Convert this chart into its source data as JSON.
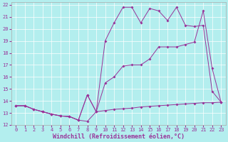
{
  "xlabel": "Windchill (Refroidissement éolien,°C)",
  "xlim": [
    -0.5,
    23.5
  ],
  "ylim": [
    12,
    22.2
  ],
  "xticks": [
    0,
    1,
    2,
    3,
    4,
    5,
    6,
    7,
    8,
    9,
    10,
    11,
    12,
    13,
    14,
    15,
    16,
    17,
    18,
    19,
    20,
    21,
    22,
    23
  ],
  "yticks": [
    12,
    13,
    14,
    15,
    16,
    17,
    18,
    19,
    20,
    21,
    22
  ],
  "bg_color": "#b3eeee",
  "line_color": "#993399",
  "line1_x": [
    0,
    1,
    2,
    3,
    4,
    5,
    6,
    7,
    8,
    9,
    10,
    11,
    12,
    13,
    14,
    15,
    16,
    17,
    18,
    19,
    20,
    21,
    22,
    23
  ],
  "line1_y": [
    13.6,
    13.6,
    13.3,
    13.1,
    12.9,
    12.75,
    12.7,
    12.4,
    12.3,
    13.1,
    13.2,
    13.3,
    13.35,
    13.4,
    13.5,
    13.55,
    13.6,
    13.65,
    13.7,
    13.75,
    13.8,
    13.85,
    13.85,
    13.9
  ],
  "line2_x": [
    0,
    1,
    2,
    3,
    4,
    5,
    6,
    7,
    8,
    9,
    10,
    11,
    12,
    13,
    14,
    15,
    16,
    17,
    18,
    19,
    20,
    21,
    22,
    23
  ],
  "line2_y": [
    13.6,
    13.6,
    13.3,
    13.1,
    12.9,
    12.75,
    12.7,
    12.4,
    14.5,
    13.1,
    15.5,
    16.0,
    16.9,
    17.0,
    17.0,
    17.5,
    18.5,
    18.5,
    18.5,
    18.7,
    18.9,
    21.5,
    16.7,
    13.9
  ],
  "line3_x": [
    0,
    1,
    2,
    3,
    4,
    5,
    6,
    7,
    8,
    9,
    10,
    11,
    12,
    13,
    14,
    15,
    16,
    17,
    18,
    19,
    20,
    21,
    22,
    23
  ],
  "line3_y": [
    13.6,
    13.6,
    13.3,
    13.1,
    12.9,
    12.75,
    12.7,
    12.4,
    14.5,
    13.1,
    19.0,
    20.5,
    21.8,
    21.8,
    20.5,
    21.7,
    21.5,
    20.7,
    21.8,
    20.3,
    20.2,
    20.3,
    14.8,
    13.9
  ],
  "font_family": "monospace",
  "tick_fontsize": 5.0,
  "label_fontsize": 6.0,
  "markersize": 2.0,
  "linewidth": 0.7
}
